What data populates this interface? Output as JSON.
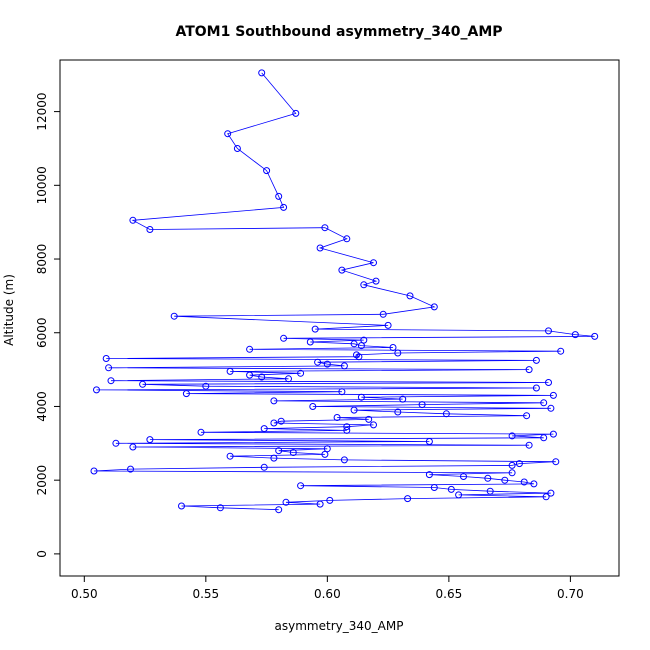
{
  "chart_data": {
    "type": "line+scatter",
    "title": "ATOM1 Southbound asymmetry_340_AMP",
    "xlabel": "asymmetry_340_AMP",
    "ylabel": "Altitude (m)",
    "xlim": [
      0.49,
      0.72
    ],
    "ylim": [
      -600,
      13400
    ],
    "x_ticks": [
      0.5,
      0.55,
      0.6,
      0.65,
      0.7
    ],
    "x_tick_labels": [
      "0.50",
      "0.55",
      "0.60",
      "0.65",
      "0.70"
    ],
    "y_ticks": [
      0,
      2000,
      4000,
      6000,
      8000,
      10000,
      12000
    ],
    "y_tick_labels": [
      "0",
      "2000",
      "4000",
      "6000",
      "8000",
      "10000",
      "12000"
    ],
    "grid": false,
    "series_color": "#0000ff",
    "marker": "open-circle",
    "series": [
      {
        "x": [
          0.573,
          0.587,
          0.559,
          0.563,
          0.575,
          0.58,
          0.582,
          0.52,
          0.527,
          0.599,
          0.608,
          0.597,
          0.619,
          0.606,
          0.62,
          0.615,
          0.634,
          0.644,
          0.623,
          0.537,
          0.625,
          0.595,
          0.691,
          0.702,
          0.71,
          0.582,
          0.615,
          0.593,
          0.611,
          0.614,
          0.627,
          0.568,
          0.696,
          0.629,
          0.612,
          0.613,
          0.509,
          0.686,
          0.596,
          0.6,
          0.607,
          0.51,
          0.683,
          0.56,
          0.589,
          0.568,
          0.573,
          0.584,
          0.511,
          0.691,
          0.524,
          0.55,
          0.686,
          0.505,
          0.606,
          0.542,
          0.693,
          0.614,
          0.631,
          0.578,
          0.689,
          0.639,
          0.594,
          0.692,
          0.611,
          0.629,
          0.649,
          0.682,
          0.604,
          0.617,
          0.581,
          0.578,
          0.619,
          0.608,
          0.574,
          0.608,
          0.548,
          0.693,
          0.676,
          0.689,
          0.527,
          0.642,
          0.513,
          0.683,
          0.52,
          0.6,
          0.58,
          0.586,
          0.599,
          0.56,
          0.578,
          0.607,
          0.694,
          0.679,
          0.676,
          0.574,
          0.519,
          0.504,
          0.676,
          0.642,
          0.656,
          0.666,
          0.673,
          0.681,
          0.685,
          0.589,
          0.644,
          0.651,
          0.667,
          0.692,
          0.654,
          0.69,
          0.633,
          0.601,
          0.583,
          0.597,
          0.54,
          0.556,
          0.58
        ],
        "y": [
          13050,
          11950,
          11400,
          11000,
          10400,
          9700,
          9400,
          9050,
          8800,
          8850,
          8550,
          8300,
          7900,
          7700,
          7400,
          7300,
          7000,
          6700,
          6500,
          6450,
          6200,
          6100,
          6050,
          5950,
          5900,
          5850,
          5800,
          5750,
          5700,
          5650,
          5600,
          5550,
          5500,
          5450,
          5400,
          5350,
          5300,
          5250,
          5200,
          5150,
          5100,
          5050,
          5000,
          4950,
          4900,
          4850,
          4800,
          4750,
          4700,
          4650,
          4600,
          4550,
          4500,
          4450,
          4400,
          4350,
          4300,
          4250,
          4200,
          4150,
          4100,
          4050,
          4000,
          3950,
          3900,
          3850,
          3800,
          3750,
          3700,
          3650,
          3600,
          3550,
          3500,
          3450,
          3400,
          3350,
          3300,
          3250,
          3200,
          3150,
          3100,
          3050,
          3000,
          2950,
          2900,
          2850,
          2800,
          2750,
          2700,
          2650,
          2600,
          2550,
          2500,
          2450,
          2400,
          2350,
          2300,
          2250,
          2200,
          2150,
          2100,
          2050,
          2000,
          1950,
          1900,
          1850,
          1800,
          1750,
          1700,
          1650,
          1600,
          1550,
          1500,
          1450,
          1400,
          1350,
          1300,
          1250,
          1200
        ]
      }
    ]
  }
}
